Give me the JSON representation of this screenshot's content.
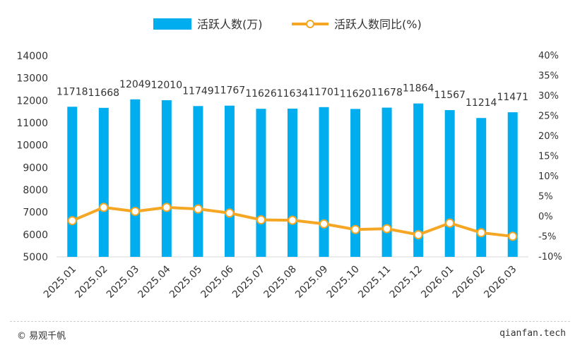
{
  "chart_data": {
    "type": "bar",
    "categories": [
      "2025.01",
      "2025.02",
      "2025.03",
      "2025.04",
      "2025.05",
      "2025.06",
      "2025.07",
      "2025.08",
      "2025.09",
      "2025.10",
      "2025.11",
      "2025.12",
      "2026.01",
      "2026.02",
      "2026.03"
    ],
    "series": [
      {
        "name": "活跃人数(万)",
        "type": "bar",
        "axis": "left",
        "color": "#00aeef",
        "values": [
          11718,
          11668,
          12049,
          12010,
          11749,
          11767,
          11626,
          11634,
          11701,
          11620,
          11678,
          11864,
          11567,
          11214,
          11471
        ],
        "data_labels": true
      },
      {
        "name": "活跃人数同比(%)",
        "type": "line",
        "axis": "right",
        "color": "#f5a623",
        "values": [
          -1.0,
          2.3,
          1.3,
          2.3,
          1.9,
          0.9,
          -0.8,
          -0.9,
          -1.8,
          -3.2,
          -3.0,
          -4.5,
          -1.6,
          -4.0,
          -4.9
        ]
      }
    ],
    "ylim_left": [
      5000,
      14000
    ],
    "yticks_left": [
      "5000",
      "6000",
      "7000",
      "8000",
      "9000",
      "10000",
      "11000",
      "12000",
      "13000",
      "14000"
    ],
    "ylim_right": [
      -10,
      40
    ],
    "yticks_right": [
      "-10%",
      "-5%",
      "0%",
      "5%",
      "10%",
      "15%",
      "20%",
      "25%",
      "30%",
      "35%",
      "40%"
    ],
    "legend_position": "top-center",
    "grid": false
  },
  "footer": {
    "copyright": "© 易观千帆",
    "source": "qianfan.tech"
  }
}
